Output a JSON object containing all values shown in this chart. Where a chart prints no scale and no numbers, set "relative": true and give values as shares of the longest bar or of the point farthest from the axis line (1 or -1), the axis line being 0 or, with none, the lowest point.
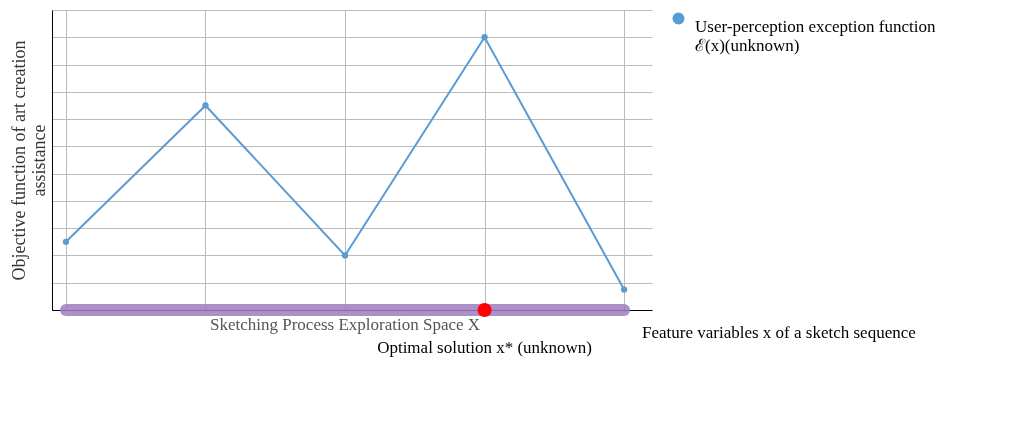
{
  "chart_data": {
    "type": "line",
    "relative": true,
    "ylabel": "Objective function of art creation assistance",
    "xlabel": "Feature variables x of a sketch sequence",
    "categories": [
      null,
      null,
      null,
      null,
      null
    ],
    "grid": true,
    "legend": "right",
    "marker": "circle",
    "line_style": "solid",
    "series": [
      {
        "name": "User-perception exception function ℰ(x)(unknown)",
        "color": "#5b9bd5",
        "values": [
          0.25,
          0.75,
          0.2,
          1,
          0.075
        ]
      },
      {
        "name": "Sketching Process Exploration Space X",
        "type": "line",
        "marker": "none",
        "color": "#a07cc0",
        "values": [
          0,
          0,
          0,
          0,
          0
        ]
      },
      {
        "name": "Optimal solution x* (unknown)",
        "type": "line",
        "marker": "circle",
        "color": "#ff0000",
        "values": [
          null,
          null,
          null,
          0,
          null
        ]
      }
    ]
  }
}
